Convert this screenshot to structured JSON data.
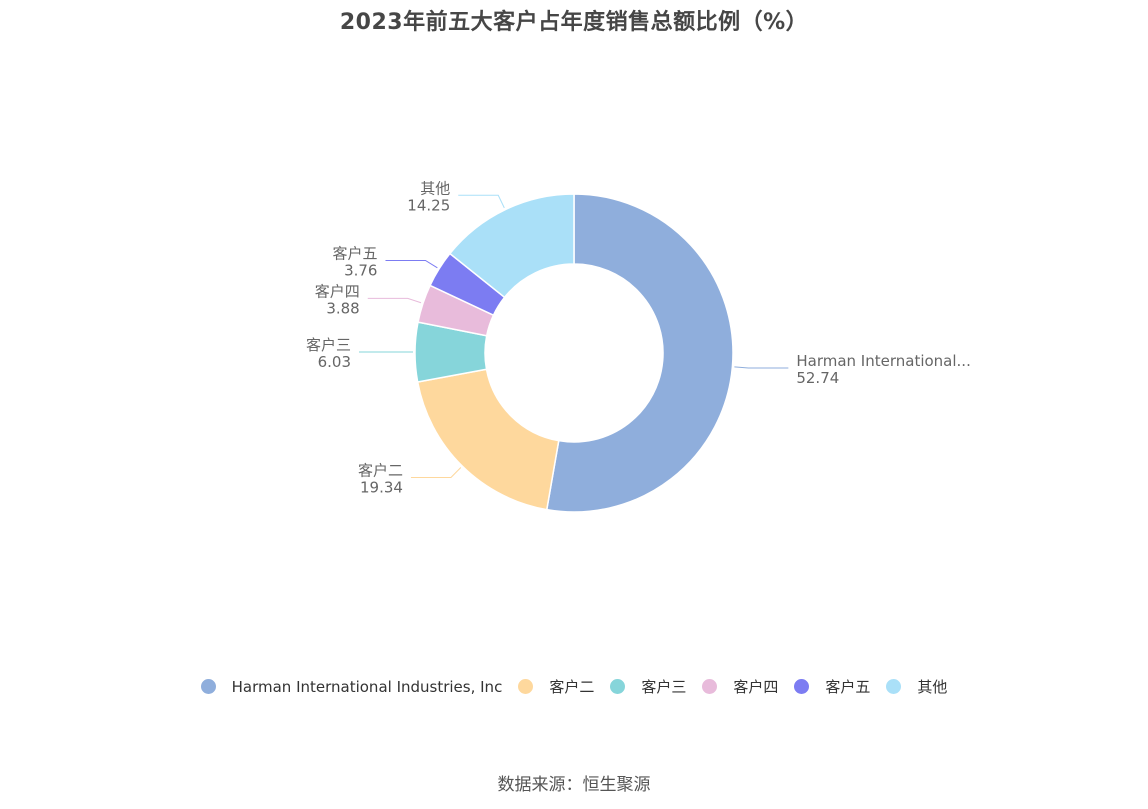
{
  "chart_data": {
    "type": "pie",
    "title": "2023年前五大客户占年度销售总额比例（%）",
    "donut": true,
    "slices": [
      {
        "name": "Harman International Industries, Inc",
        "label": "Harman International...",
        "value": 52.74,
        "color": "#8faedc"
      },
      {
        "name": "客户二",
        "label": "客户二",
        "value": 19.34,
        "color": "#fed89d"
      },
      {
        "name": "客户三",
        "label": "客户三",
        "value": 6.03,
        "color": "#86d5da"
      },
      {
        "name": "客户四",
        "label": "客户四",
        "value": 3.88,
        "color": "#e8bbdb"
      },
      {
        "name": "客户五",
        "label": "客户五",
        "value": 3.76,
        "color": "#7c7cf2"
      },
      {
        "name": "其他",
        "label": "其他",
        "value": 14.25,
        "color": "#aae0f8"
      }
    ],
    "legend_position": "bottom"
  },
  "footer": {
    "source": "数据来源：恒生聚源"
  }
}
